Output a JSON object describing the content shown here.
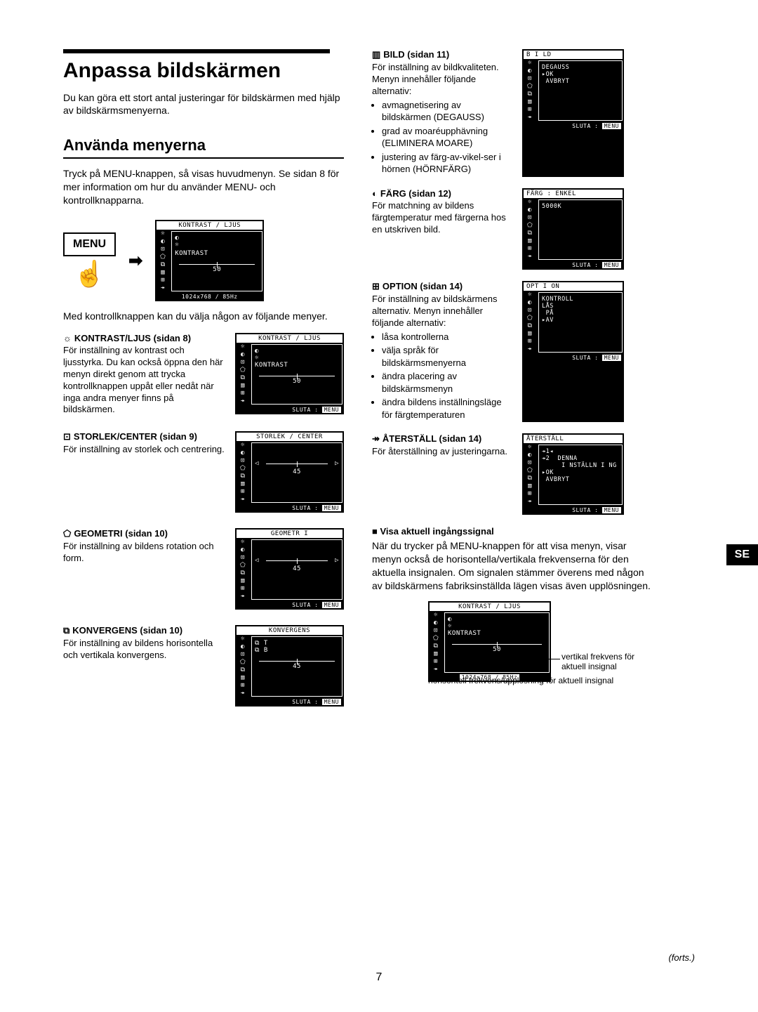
{
  "title": "Anpassa bildskärmen",
  "intro": "Du kan göra ett stort antal justeringar för bildskärmen med hjälp av bildskärmsmenyerna.",
  "section1_heading": "Använda menyerna",
  "section1_text": "Tryck på MENU-knappen, så visas huvudmenyn. Se sidan 8 för mer information om hur du använder MENU- och kontrollknapparna.",
  "menu_label": "MENU",
  "after_menu_text": "Med kontrollknappen kan du välja någon av följande menyer.",
  "left_items": [
    {
      "icon": "☼",
      "heading": "KONTRAST/LJUS (sidan 8)",
      "desc": "För inställning av kontrast och ljusstyrka. Du kan också öppna den här menyn direkt genom att trycka kontrollknappen uppåt eller nedåt när inga andra menyer finns på bildskärmen.",
      "osd_title": "KONTRAST / LJUS",
      "osd_line": "KONTRAST",
      "osd_val": "50",
      "osd_footer": "SLUTA : MENU"
    },
    {
      "icon": "⊡",
      "heading": "STORLEK/CENTER (sidan 9)",
      "desc": "För inställning av storlek och centrering.",
      "osd_title": "STORLEK / CENTER",
      "osd_line": "",
      "osd_val": "45",
      "osd_footer": "SLUTA : MENU"
    },
    {
      "icon": "⬠",
      "heading": "GEOMETRI (sidan 10)",
      "desc": "För inställning av bildens rotation och form.",
      "osd_title": "GEOMETR I",
      "osd_line": "",
      "osd_val": "45",
      "osd_footer": "SLUTA : MENU"
    },
    {
      "icon": "⧉",
      "heading": "KONVERGENS (sidan 10)",
      "desc": "För inställning av bildens horisontella och vertikala konvergens.",
      "osd_title": "KONVERGENS",
      "osd_line": "",
      "osd_val": "45",
      "osd_footer": "SLUTA : MENU"
    }
  ],
  "right_items": [
    {
      "icon": "▥",
      "heading": "BILD (sidan 11)",
      "desc": "För inställning av bildkvaliteten.\nMenyn innehåller följande alternativ:",
      "bullets": [
        "avmagnetisering av bildskärmen (DEGAUSS)",
        "grad av moaréupphävning (ELIMINERA MOARE)",
        "justering av färg-av-vi­kel-ser i hörnen (HÖRNFÄRG)"
      ],
      "osd_title": "B I LD",
      "osd_lines": [
        "DEGAUSS",
        "",
        "▸OK",
        " AVBRYT"
      ],
      "osd_footer": "SLUTA : MENU"
    },
    {
      "icon": "◐",
      "heading": "FÄRG (sidan 12)",
      "desc": "För matchning av bildens färgtemperatur med färgerna hos en utskriven bild.",
      "osd_title": "FÄRG    : ENKEL",
      "osd_lines": [
        "",
        "",
        "5000K"
      ],
      "osd_footer": "SLUTA : MENU"
    },
    {
      "icon": "⊞",
      "heading": "OPTION (sidan 14)",
      "desc": "För inställning av bildskärmens alternativ. Menyn innehåller följande alternativ:",
      "bullets": [
        "låsa kontrollerna",
        "välja språk för bildskärmsmenyerna",
        "ändra placering av bildskärmsmenyn",
        "ändra bildens inställningsläge för färgtemperaturen"
      ],
      "osd_title": "OPT I ON",
      "osd_lines": [
        "KONTROLL",
        "LÅS",
        "",
        " PÅ",
        "▸AV"
      ],
      "osd_footer": "SLUTA : MENU"
    },
    {
      "icon": "↠",
      "heading": "ÅTERSTÄLL (sidan 14)",
      "desc": "För återställning av justeringarna.",
      "osd_title": "ÅTERSTÄLL",
      "osd_lines": [
        "↠1◂",
        "↠2  DENNA",
        "     I NSTÄLLN I NG",
        "▸OK",
        " AVBRYT"
      ],
      "osd_footer": "SLUTA : MENU"
    }
  ],
  "signal_heading": "Visa aktuell ingångssignal",
  "signal_text": "När du trycker på MENU-knappen för att visa menyn, visar menyn också de horisontella/vertikala frekvenserna för den aktuella insignalen. Om signalen stämmer överens med någon av bildskärmens fabriksinställda lägen visas även upplösningen.",
  "signal_osd": {
    "title": "KONTRAST / LJUS",
    "line": "KONTRAST",
    "val": "50",
    "footer": "1024x768 / 85Hz"
  },
  "sig_label_v": "vertikal frekvens för aktuell insignal",
  "sig_label_h": "horisontell frekvens/upplösning för aktuell insignal",
  "main_osd": {
    "title": "KONTRAST / LJUS",
    "line": "KONTRAST",
    "val": "50",
    "footer": "1024x768  /   85Hz"
  },
  "se_tab": "SE",
  "page_num": "7",
  "forts": "(forts.)"
}
